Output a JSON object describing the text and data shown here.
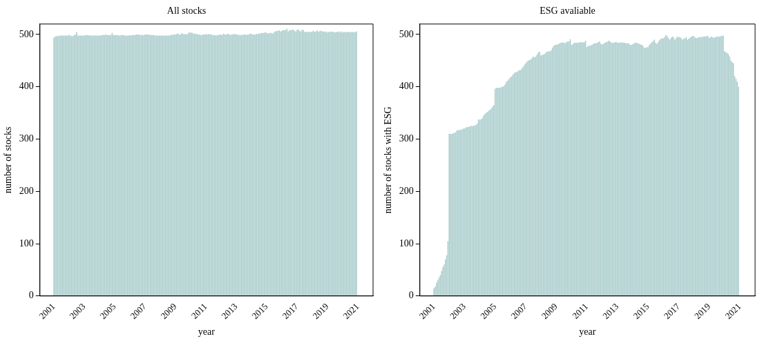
{
  "chart_data": [
    {
      "type": "bar",
      "title": "All stocks",
      "xlabel": "year",
      "ylabel": "number of stocks",
      "color": "#a8cbcb",
      "x": [
        "2001-01",
        "2001-02",
        "2001-03",
        "2001-04",
        "2001-05",
        "2001-06",
        "2001-07",
        "2001-08",
        "2001-09",
        "2001-10",
        "2001-11",
        "2001-12",
        "2002-01",
        "2002-02",
        "2002-03",
        "2002-04",
        "2002-05",
        "2002-06",
        "2002-07",
        "2002-08",
        "2002-09",
        "2002-10",
        "2002-11",
        "2002-12",
        "2003-01",
        "2003-02",
        "2003-03",
        "2003-04",
        "2003-05",
        "2003-06",
        "2003-07",
        "2003-08",
        "2003-09",
        "2003-10",
        "2003-11",
        "2003-12",
        "2004-01",
        "2004-02",
        "2004-03",
        "2004-04",
        "2004-05",
        "2004-06",
        "2004-07",
        "2004-08",
        "2004-09",
        "2004-10",
        "2004-11",
        "2004-12",
        "2005-01",
        "2005-02",
        "2005-03",
        "2005-04",
        "2005-05",
        "2005-06",
        "2005-07",
        "2005-08",
        "2005-09",
        "2005-10",
        "2005-11",
        "2005-12",
        "2006-01",
        "2006-02",
        "2006-03",
        "2006-04",
        "2006-05",
        "2006-06",
        "2006-07",
        "2006-08",
        "2006-09",
        "2006-10",
        "2006-11",
        "2006-12",
        "2007-01",
        "2007-02",
        "2007-03",
        "2007-04",
        "2007-05",
        "2007-06",
        "2007-07",
        "2007-08",
        "2007-09",
        "2007-10",
        "2007-11",
        "2007-12",
        "2008-01",
        "2008-02",
        "2008-03",
        "2008-04",
        "2008-05",
        "2008-06",
        "2008-07",
        "2008-08",
        "2008-09",
        "2008-10",
        "2008-11",
        "2008-12",
        "2009-01",
        "2009-02",
        "2009-03",
        "2009-04",
        "2009-05",
        "2009-06",
        "2009-07",
        "2009-08",
        "2009-09",
        "2009-10",
        "2009-11",
        "2009-12",
        "2010-01",
        "2010-02",
        "2010-03",
        "2010-04",
        "2010-05",
        "2010-06",
        "2010-07",
        "2010-08",
        "2010-09",
        "2010-10",
        "2010-11",
        "2010-12",
        "2011-01",
        "2011-02",
        "2011-03",
        "2011-04",
        "2011-05",
        "2011-06",
        "2011-07",
        "2011-08",
        "2011-09",
        "2011-10",
        "2011-11",
        "2011-12",
        "2012-01",
        "2012-02",
        "2012-03",
        "2012-04",
        "2012-05",
        "2012-06",
        "2012-07",
        "2012-08",
        "2012-09",
        "2012-10",
        "2012-11",
        "2012-12",
        "2013-01",
        "2013-02",
        "2013-03",
        "2013-04",
        "2013-05",
        "2013-06",
        "2013-07",
        "2013-08",
        "2013-09",
        "2013-10",
        "2013-11",
        "2013-12",
        "2014-01",
        "2014-02",
        "2014-03",
        "2014-04",
        "2014-05",
        "2014-06",
        "2014-07",
        "2014-08",
        "2014-09",
        "2014-10",
        "2014-11",
        "2014-12",
        "2015-01",
        "2015-02",
        "2015-03",
        "2015-04",
        "2015-05",
        "2015-06",
        "2015-07",
        "2015-08",
        "2015-09",
        "2015-10",
        "2015-11",
        "2015-12",
        "2016-01",
        "2016-02",
        "2016-03",
        "2016-04",
        "2016-05",
        "2016-06",
        "2016-07",
        "2016-08",
        "2016-09",
        "2016-10",
        "2016-11",
        "2016-12",
        "2017-01",
        "2017-02",
        "2017-03",
        "2017-04",
        "2017-05",
        "2017-06",
        "2017-07",
        "2017-08",
        "2017-09",
        "2017-10",
        "2017-11",
        "2017-12",
        "2018-01",
        "2018-02",
        "2018-03",
        "2018-04",
        "2018-05",
        "2018-06",
        "2018-07",
        "2018-08",
        "2018-09",
        "2018-10",
        "2018-11",
        "2018-12",
        "2019-01",
        "2019-02",
        "2019-03",
        "2019-04",
        "2019-05",
        "2019-06",
        "2019-07",
        "2019-08",
        "2019-09",
        "2019-10",
        "2019-11",
        "2019-12",
        "2020-01",
        "2020-02",
        "2020-03",
        "2020-04",
        "2020-05",
        "2020-06",
        "2020-07",
        "2020-08",
        "2020-09",
        "2020-10",
        "2020-11",
        "2020-12"
      ],
      "xlim": [
        "2000-02",
        "2022-01"
      ],
      "xticks": [
        "2001",
        "2003",
        "2005",
        "2007",
        "2009",
        "2011",
        "2013",
        "2015",
        "2017",
        "2019",
        "2021"
      ],
      "values": [
        494,
        496,
        497,
        497,
        497,
        498,
        498,
        498,
        498,
        498,
        498,
        498,
        499,
        498,
        497,
        497,
        499,
        500,
        505,
        498,
        498,
        498,
        498,
        498,
        498,
        499,
        499,
        499,
        498,
        498,
        498,
        498,
        498,
        498,
        498,
        498,
        498,
        498,
        499,
        499,
        499,
        500,
        499,
        499,
        499,
        499,
        503,
        499,
        499,
        499,
        499,
        498,
        498,
        499,
        499,
        499,
        498,
        498,
        498,
        498,
        499,
        498,
        499,
        499,
        499,
        500,
        500,
        500,
        499,
        499,
        499,
        499,
        500,
        500,
        500,
        500,
        499,
        499,
        499,
        499,
        498,
        498,
        498,
        498,
        498,
        498,
        498,
        498,
        498,
        498,
        498,
        498,
        499,
        499,
        500,
        500,
        500,
        501,
        502,
        500,
        500,
        503,
        501,
        501,
        501,
        500,
        502,
        505,
        503,
        504,
        502,
        502,
        501,
        501,
        500,
        500,
        499,
        499,
        500,
        500,
        501,
        500,
        501,
        500,
        501,
        499,
        499,
        499,
        498,
        499,
        499,
        500,
        500,
        499,
        502,
        500,
        500,
        501,
        501,
        499,
        500,
        500,
        501,
        501,
        500,
        500,
        499,
        499,
        499,
        499,
        500,
        500,
        499,
        500,
        500,
        502,
        501,
        500,
        500,
        500,
        501,
        501,
        502,
        502,
        503,
        503,
        503,
        505,
        503,
        502,
        503,
        503,
        503,
        502,
        505,
        506,
        507,
        507,
        508,
        506,
        507,
        509,
        508,
        509,
        511,
        506,
        509,
        508,
        509,
        510,
        507,
        506,
        509,
        510,
        507,
        506,
        509,
        509,
        505,
        505,
        505,
        505,
        505,
        505,
        506,
        507,
        505,
        506,
        508,
        505,
        507,
        507,
        506,
        506,
        505,
        506,
        504,
        505,
        505,
        506,
        505,
        505,
        504,
        505,
        505,
        506,
        504,
        506,
        504,
        505,
        505,
        504,
        505,
        505,
        504,
        505,
        505,
        504,
        505,
        506
      ],
      "ylim": [
        0,
        520
      ],
      "yticks": [
        0,
        100,
        200,
        300,
        400,
        500
      ]
    },
    {
      "type": "bar",
      "title": "ESG avaliable",
      "xlabel": "year",
      "ylabel": "number of stocks with ESG",
      "color": "#a8cbcb",
      "x": [
        "2001-01",
        "2001-02",
        "2001-03",
        "2001-04",
        "2001-05",
        "2001-06",
        "2001-07",
        "2001-08",
        "2001-09",
        "2001-10",
        "2001-11",
        "2001-12",
        "2002-01",
        "2002-02",
        "2002-03",
        "2002-04",
        "2002-05",
        "2002-06",
        "2002-07",
        "2002-08",
        "2002-09",
        "2002-10",
        "2002-11",
        "2002-12",
        "2003-01",
        "2003-02",
        "2003-03",
        "2003-04",
        "2003-05",
        "2003-06",
        "2003-07",
        "2003-08",
        "2003-09",
        "2003-10",
        "2003-11",
        "2003-12",
        "2004-01",
        "2004-02",
        "2004-03",
        "2004-04",
        "2004-05",
        "2004-06",
        "2004-07",
        "2004-08",
        "2004-09",
        "2004-10",
        "2004-11",
        "2004-12",
        "2005-01",
        "2005-02",
        "2005-03",
        "2005-04",
        "2005-05",
        "2005-06",
        "2005-07",
        "2005-08",
        "2005-09",
        "2005-10",
        "2005-11",
        "2005-12",
        "2006-01",
        "2006-02",
        "2006-03",
        "2006-04",
        "2006-05",
        "2006-06",
        "2006-07",
        "2006-08",
        "2006-09",
        "2006-10",
        "2006-11",
        "2006-12",
        "2007-01",
        "2007-02",
        "2007-03",
        "2007-04",
        "2007-05",
        "2007-06",
        "2007-07",
        "2007-08",
        "2007-09",
        "2007-10",
        "2007-11",
        "2007-12",
        "2008-01",
        "2008-02",
        "2008-03",
        "2008-04",
        "2008-05",
        "2008-06",
        "2008-07",
        "2008-08",
        "2008-09",
        "2008-10",
        "2008-11",
        "2008-12",
        "2009-01",
        "2009-02",
        "2009-03",
        "2009-04",
        "2009-05",
        "2009-06",
        "2009-07",
        "2009-08",
        "2009-09",
        "2009-10",
        "2009-11",
        "2009-12",
        "2010-01",
        "2010-02",
        "2010-03",
        "2010-04",
        "2010-05",
        "2010-06",
        "2010-07",
        "2010-08",
        "2010-09",
        "2010-10",
        "2010-11",
        "2010-12",
        "2011-01",
        "2011-02",
        "2011-03",
        "2011-04",
        "2011-05",
        "2011-06",
        "2011-07",
        "2011-08",
        "2011-09",
        "2011-10",
        "2011-11",
        "2011-12",
        "2012-01",
        "2012-02",
        "2012-03",
        "2012-04",
        "2012-05",
        "2012-06",
        "2012-07",
        "2012-08",
        "2012-09",
        "2012-10",
        "2012-11",
        "2012-12",
        "2013-01",
        "2013-02",
        "2013-03",
        "2013-04",
        "2013-05",
        "2013-06",
        "2013-07",
        "2013-08",
        "2013-09",
        "2013-10",
        "2013-11",
        "2013-12",
        "2014-01",
        "2014-02",
        "2014-03",
        "2014-04",
        "2014-05",
        "2014-06",
        "2014-07",
        "2014-08",
        "2014-09",
        "2014-10",
        "2014-11",
        "2014-12",
        "2015-01",
        "2015-02",
        "2015-03",
        "2015-04",
        "2015-05",
        "2015-06",
        "2015-07",
        "2015-08",
        "2015-09",
        "2015-10",
        "2015-11",
        "2015-12",
        "2016-01",
        "2016-02",
        "2016-03",
        "2016-04",
        "2016-05",
        "2016-06",
        "2016-07",
        "2016-08",
        "2016-09",
        "2016-10",
        "2016-11",
        "2016-12",
        "2017-01",
        "2017-02",
        "2017-03",
        "2017-04",
        "2017-05",
        "2017-06",
        "2017-07",
        "2017-08",
        "2017-09",
        "2017-10",
        "2017-11",
        "2017-12",
        "2018-01",
        "2018-02",
        "2018-03",
        "2018-04",
        "2018-05",
        "2018-06",
        "2018-07",
        "2018-08",
        "2018-09",
        "2018-10",
        "2018-11",
        "2018-12",
        "2019-01",
        "2019-02",
        "2019-03",
        "2019-04",
        "2019-05",
        "2019-06",
        "2019-07",
        "2019-08",
        "2019-09",
        "2019-10",
        "2019-11",
        "2019-12",
        "2020-01",
        "2020-02",
        "2020-03",
        "2020-04",
        "2020-05",
        "2020-06",
        "2020-07",
        "2020-08",
        "2020-09",
        "2020-10",
        "2020-11",
        "2020-12"
      ],
      "xlim": [
        "2000-02",
        "2022-01"
      ],
      "xticks": [
        "2001",
        "2003",
        "2005",
        "2007",
        "2009",
        "2011",
        "2013",
        "2015",
        "2017",
        "2019",
        "2021"
      ],
      "values": [
        15,
        18,
        25,
        30,
        35,
        40,
        48,
        55,
        60,
        70,
        78,
        105,
        310,
        310,
        310,
        311,
        312,
        313,
        316,
        317,
        317,
        318,
        318,
        320,
        320,
        322,
        323,
        323,
        324,
        325,
        325,
        325,
        326,
        327,
        330,
        338,
        337,
        338,
        340,
        345,
        348,
        350,
        352,
        354,
        356,
        358,
        362,
        365,
        396,
        398,
        398,
        398,
        398,
        400,
        400,
        402,
        405,
        410,
        412,
        415,
        418,
        420,
        423,
        426,
        428,
        428,
        430,
        432,
        432,
        435,
        438,
        442,
        445,
        448,
        450,
        451,
        452,
        455,
        458,
        456,
        458,
        462,
        466,
        467,
        460,
        461,
        462,
        463,
        466,
        467,
        468,
        468,
        470,
        475,
        478,
        480,
        480,
        481,
        482,
        484,
        484,
        485,
        484,
        483,
        486,
        486,
        487,
        491,
        480,
        481,
        484,
        484,
        484,
        484,
        485,
        485,
        485,
        485,
        485,
        488,
        476,
        478,
        478,
        479,
        480,
        482,
        483,
        483,
        484,
        485,
        487,
        482,
        481,
        482,
        484,
        485,
        486,
        488,
        487,
        485,
        484,
        484,
        485,
        486,
        484,
        484,
        485,
        484,
        485,
        484,
        484,
        483,
        483,
        483,
        480,
        480,
        481,
        483,
        484,
        484,
        483,
        482,
        481,
        480,
        478,
        475,
        474,
        476,
        476,
        480,
        483,
        485,
        487,
        490,
        484,
        482,
        486,
        489,
        492,
        492,
        493,
        495,
        499,
        497,
        493,
        490,
        493,
        496,
        495,
        490,
        493,
        496,
        495,
        495,
        493,
        490,
        492,
        493,
        495,
        490,
        492,
        494,
        496,
        497,
        497,
        494,
        493,
        494,
        495,
        495,
        495,
        496,
        496,
        496,
        497,
        497,
        493,
        495,
        496,
        494,
        494,
        495,
        496,
        496,
        496,
        497,
        497,
        498,
        468,
        466,
        465,
        463,
        458,
        450,
        447,
        445,
        420,
        415,
        410,
        400
      ],
      "ylim": [
        0,
        520
      ],
      "yticks": [
        0,
        100,
        200,
        300,
        400,
        500
      ]
    }
  ]
}
